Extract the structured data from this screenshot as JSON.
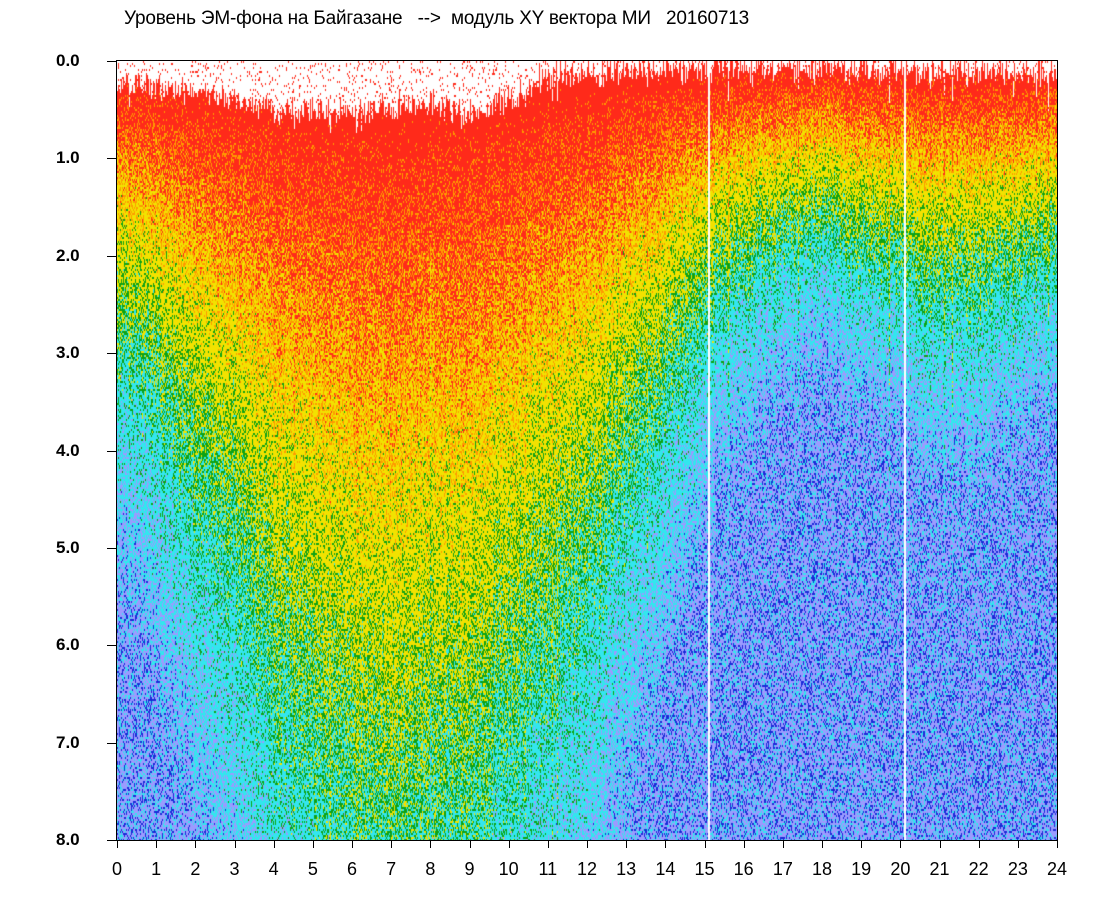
{
  "chart_data": {
    "type": "heatmap",
    "title": "Уровень ЭМ-фона на Байгазане   -->  модуль XY вектора МИ   20160713",
    "xlabel": "",
    "ylabel": "",
    "xlim": [
      0,
      24
    ],
    "ylim": [
      0.0,
      8.0
    ],
    "y_inverted": true,
    "x_ticks": [
      "0",
      "1",
      "2",
      "3",
      "4",
      "5",
      "6",
      "7",
      "8",
      "9",
      "10",
      "11",
      "12",
      "13",
      "14",
      "15",
      "16",
      "17",
      "18",
      "19",
      "20",
      "21",
      "22",
      "23",
      "24"
    ],
    "y_ticks": [
      "0.0",
      "1.0",
      "2.0",
      "3.0",
      "4.0",
      "5.0",
      "6.0",
      "7.0",
      "8.0"
    ],
    "grid": false,
    "colors": {
      "red": "#ff2a1a",
      "orange": "#ff9a00",
      "yellow": "#f2e200",
      "green": "#0ea214",
      "cyan": "#33e6ee",
      "lavender": "#9b9bff",
      "blue": "#1a2ad8"
    },
    "intensity_profile": [
      {
        "x": 0,
        "top": 0.25,
        "hot": 1.3
      },
      {
        "x": 1,
        "top": 0.25,
        "hot": 1.6
      },
      {
        "x": 2,
        "top": 0.3,
        "hot": 2.0
      },
      {
        "x": 3,
        "top": 0.4,
        "hot": 2.4
      },
      {
        "x": 4,
        "top": 0.5,
        "hot": 3.0
      },
      {
        "x": 5,
        "top": 0.5,
        "hot": 3.3
      },
      {
        "x": 6,
        "top": 0.5,
        "hot": 3.6
      },
      {
        "x": 7,
        "top": 0.45,
        "hot": 3.8
      },
      {
        "x": 8,
        "top": 0.45,
        "hot": 3.7
      },
      {
        "x": 9,
        "top": 0.5,
        "hot": 3.5
      },
      {
        "x": 10,
        "top": 0.4,
        "hot": 3.2
      },
      {
        "x": 11,
        "top": 0.15,
        "hot": 2.8
      },
      {
        "x": 12,
        "top": 0.1,
        "hot": 2.5
      },
      {
        "x": 13,
        "top": 0.1,
        "hot": 2.0
      },
      {
        "x": 14,
        "top": 0.05,
        "hot": 1.6
      },
      {
        "x": 15,
        "top": 0.05,
        "hot": 1.2
      },
      {
        "x": 16,
        "top": 0.05,
        "hot": 1.0
      },
      {
        "x": 17,
        "top": 0.05,
        "hot": 0.9
      },
      {
        "x": 18,
        "top": 0.05,
        "hot": 0.8
      },
      {
        "x": 19,
        "top": 0.05,
        "hot": 0.9
      },
      {
        "x": 20,
        "top": 0.1,
        "hot": 1.0
      },
      {
        "x": 21,
        "top": 0.1,
        "hot": 1.1
      },
      {
        "x": 22,
        "top": 0.1,
        "hot": 1.1
      },
      {
        "x": 23,
        "top": 0.1,
        "hot": 1.0
      },
      {
        "x": 24,
        "top": 0.15,
        "hot": 0.9
      }
    ],
    "gap_lines_x": [
      15.1,
      20.1
    ]
  }
}
